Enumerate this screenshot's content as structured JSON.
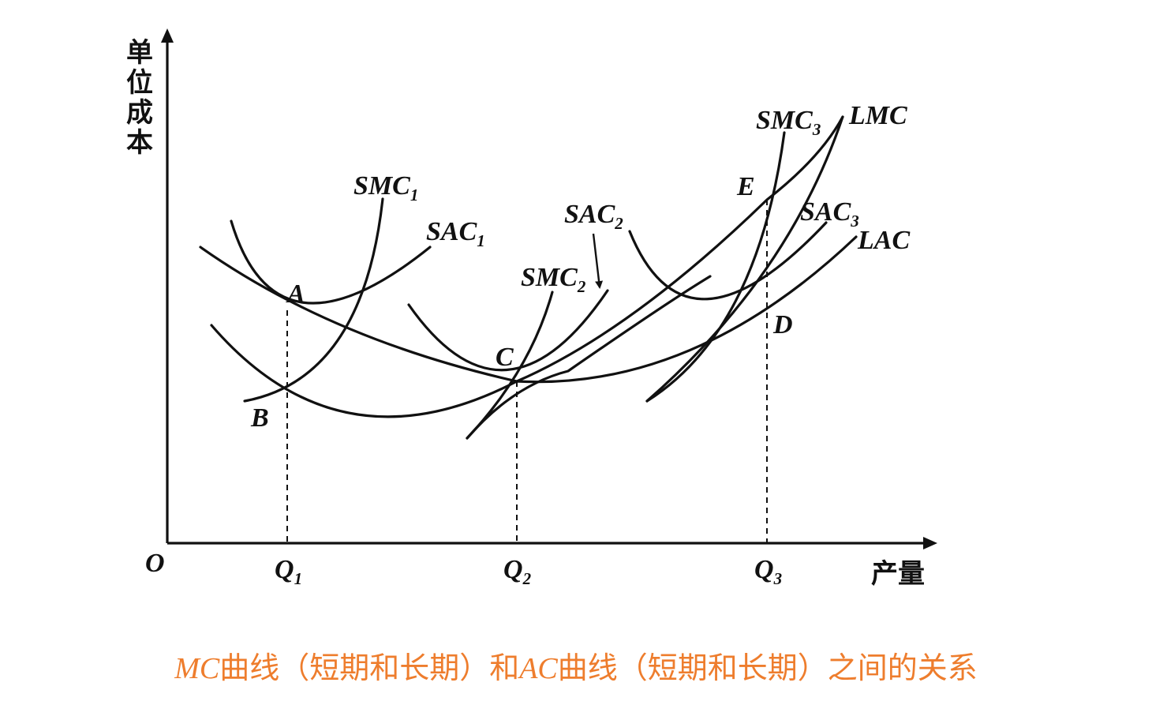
{
  "axes": {
    "origin": "O",
    "y_label": [
      "单",
      "位",
      "成",
      "本"
    ],
    "x_label": "产量",
    "x_ticks": [
      {
        "letter": "Q",
        "sub": "1"
      },
      {
        "letter": "Q",
        "sub": "2"
      },
      {
        "letter": "Q",
        "sub": "3"
      }
    ]
  },
  "curves": [
    {
      "key": "smc1",
      "name": "SMC",
      "sub": "1"
    },
    {
      "key": "sac1",
      "name": "SAC",
      "sub": "1"
    },
    {
      "key": "smc2",
      "name": "SMC",
      "sub": "2"
    },
    {
      "key": "sac2",
      "name": "SAC",
      "sub": "2"
    },
    {
      "key": "smc3",
      "name": "SMC",
      "sub": "3"
    },
    {
      "key": "sac3",
      "name": "SAC",
      "sub": "3"
    },
    {
      "key": "lmc",
      "name": "LMC",
      "sub": ""
    },
    {
      "key": "lac",
      "name": "LAC",
      "sub": ""
    }
  ],
  "points": [
    "A",
    "B",
    "C",
    "D",
    "E"
  ],
  "caption": {
    "part1_italic": "MC",
    "part2": "曲线（短期和长期）和",
    "part3_italic": "AC",
    "part4": "曲线（短期和长期）之间的关系"
  },
  "colors": {
    "line": "#111111",
    "caption": "#ee7d2d",
    "background": "#ffffff"
  }
}
